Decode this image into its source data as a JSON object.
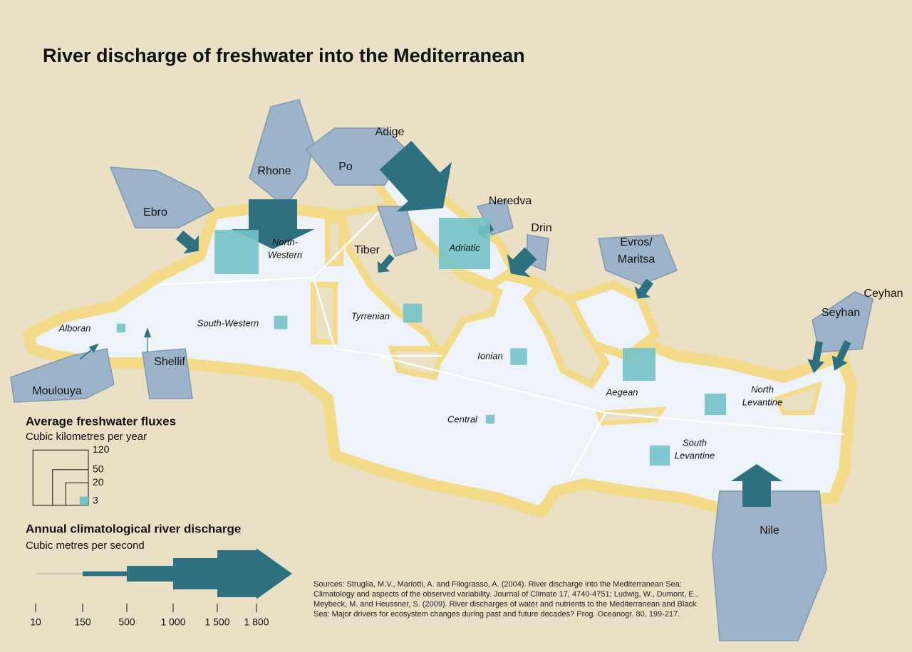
{
  "title": "River discharge of freshwater into the Mediterranean",
  "rivers": [
    {
      "name": [
        "Adige"
      ]
    },
    {
      "name": [
        "Rhone"
      ],
      "discharge": 1700
    },
    {
      "name": [
        "Po"
      ],
      "discharge": 1500
    },
    {
      "name": [
        "Ebro"
      ],
      "discharge": 400
    },
    {
      "name": [
        "Neredva"
      ],
      "discharge": 300
    },
    {
      "name": [
        "Drin"
      ],
      "discharge": 600
    },
    {
      "name": [
        "Tiber"
      ],
      "discharge": 230
    },
    {
      "name": [
        "Evros/",
        "Maritsa"
      ],
      "discharge": 300
    },
    {
      "name": [
        "Seyhan"
      ],
      "discharge": 250
    },
    {
      "name": [
        "Ceyhan"
      ],
      "discharge": 250
    },
    {
      "name": [
        "Nile"
      ],
      "discharge": 1000
    },
    {
      "name": [
        "Moulouya"
      ],
      "discharge": 40
    },
    {
      "name": [
        "Shellif"
      ],
      "discharge": 30
    }
  ],
  "regions": [
    {
      "name": [
        "North-",
        "Western"
      ],
      "flux": 76
    },
    {
      "name": [
        "Adriatic"
      ],
      "flux": 103
    },
    {
      "name": [
        "Tyrrenian"
      ],
      "flux": 14
    },
    {
      "name": [
        "South-Western"
      ],
      "flux": 7
    },
    {
      "name": [
        "Alboran"
      ],
      "flux": 3
    },
    {
      "name": [
        "Ionian"
      ],
      "flux": 11
    },
    {
      "name": [
        "Aegean"
      ],
      "flux": 42
    },
    {
      "name": [
        "Central"
      ],
      "flux": 3
    },
    {
      "name": [
        "North",
        "Levantine"
      ],
      "flux": 18
    },
    {
      "name": [
        "South",
        "Levantine"
      ],
      "flux": 16
    }
  ],
  "legend_flux": {
    "title": "Average freshwater fluxes",
    "subtitle": "Cubic kilometres per year",
    "ticks": [
      120,
      50,
      20,
      3
    ]
  },
  "legend_discharge": {
    "title": "Annual climatological river discharge",
    "subtitle": "Cubic metres per second",
    "ticks": [
      10,
      150,
      500,
      {
        "value": 1000,
        "label": "1 000"
      },
      {
        "value": 1500,
        "label": "1 500"
      },
      {
        "value": 1800,
        "label": "1 800"
      }
    ]
  },
  "sources": "Sources: Struglia, M.V., Mariotti, A. and Filograsso, A. (2004). River discharge into the Mediterranean Sea: Climatology and aspects of the observed variability. Journal of Climate 17, 4740-4751; Ludwig, W., Dumont, E., Meybeck, M. and Heussner, S. (2009). River discharges of water and nutrients to the Mediterranean and Black Sea: Major drivers for ecosystem changes during past and future decades? Prog. Oceanogr. 80, 199-217."
}
